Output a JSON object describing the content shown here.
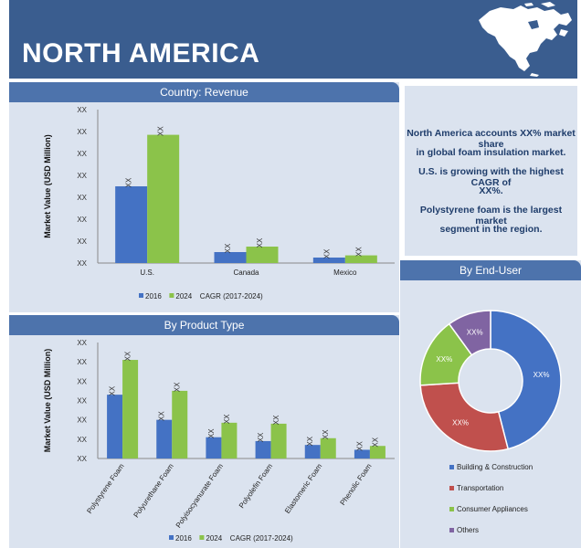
{
  "header": {
    "title": "NORTH AMERICA"
  },
  "info": {
    "lines": [
      "North America accounts XX%  market share",
      "in global foam insulation market.",
      "U.S. is growing with the highest CAGR of",
      "XX%.",
      "Polystyrene foam is the largest market",
      "segment in the region."
    ]
  },
  "colors": {
    "blue": "#4472c4",
    "green": "#8bc34a",
    "red": "#c0504d",
    "purple": "#8064a2",
    "header": "#3a5d8f",
    "panel": "#dbe3ef"
  },
  "chart_data": [
    {
      "type": "bar",
      "title": "Country: Revenue",
      "ylabel": "Market Value (USD Million)",
      "yticks": [
        "XX",
        "XX",
        "XX",
        "XX",
        "XX",
        "XX",
        "XX",
        "XX"
      ],
      "categories": [
        "U.S.",
        "Canada",
        "Mexico"
      ],
      "series": [
        {
          "name": "2016",
          "values": [
            3.5,
            0.5,
            0.25
          ],
          "labels": [
            "XX",
            "XX",
            "XX"
          ]
        },
        {
          "name": "2024",
          "values": [
            5.85,
            0.75,
            0.35
          ],
          "labels": [
            "XX",
            "XX",
            "XX"
          ]
        }
      ],
      "legend": [
        "2016",
        "2024",
        "CAGR (2017-2024)"
      ],
      "ylim": [
        0,
        7
      ]
    },
    {
      "type": "bar",
      "title": "By Product Type",
      "ylabel": "Market Value (USD Million)",
      "yticks": [
        "XX",
        "XX",
        "XX",
        "XX",
        "XX",
        "XX",
        "XX"
      ],
      "categories": [
        "Polystyrene Foam",
        "Polyurethane Foam",
        "Polyisocyanurate Foam",
        "Polyolefin Foam",
        "Elastomeric Foam",
        "Phenolic Foam"
      ],
      "series": [
        {
          "name": "2016",
          "values": [
            3.3,
            2.0,
            1.1,
            0.9,
            0.7,
            0.45
          ],
          "labels": [
            "XX",
            "XX",
            "XX",
            "XX",
            "XX",
            "XX"
          ]
        },
        {
          "name": "2024",
          "values": [
            5.1,
            3.5,
            1.85,
            1.8,
            1.05,
            0.65
          ],
          "labels": [
            "XX",
            "XX",
            "XX",
            "XX",
            "XX",
            "XX"
          ]
        }
      ],
      "legend": [
        "2016",
        "2024",
        "CAGR (2017-2024)"
      ],
      "ylim": [
        0,
        6
      ]
    },
    {
      "type": "pie",
      "title": "By End-User",
      "slices": [
        {
          "name": "Building & Construction",
          "value": 46,
          "label": "XX%"
        },
        {
          "name": "Transportation",
          "value": 28,
          "label": "XX%"
        },
        {
          "name": "Consumer Appliances",
          "value": 16,
          "label": "XX%"
        },
        {
          "name": "Others",
          "value": 10,
          "label": "XX%"
        }
      ]
    }
  ]
}
